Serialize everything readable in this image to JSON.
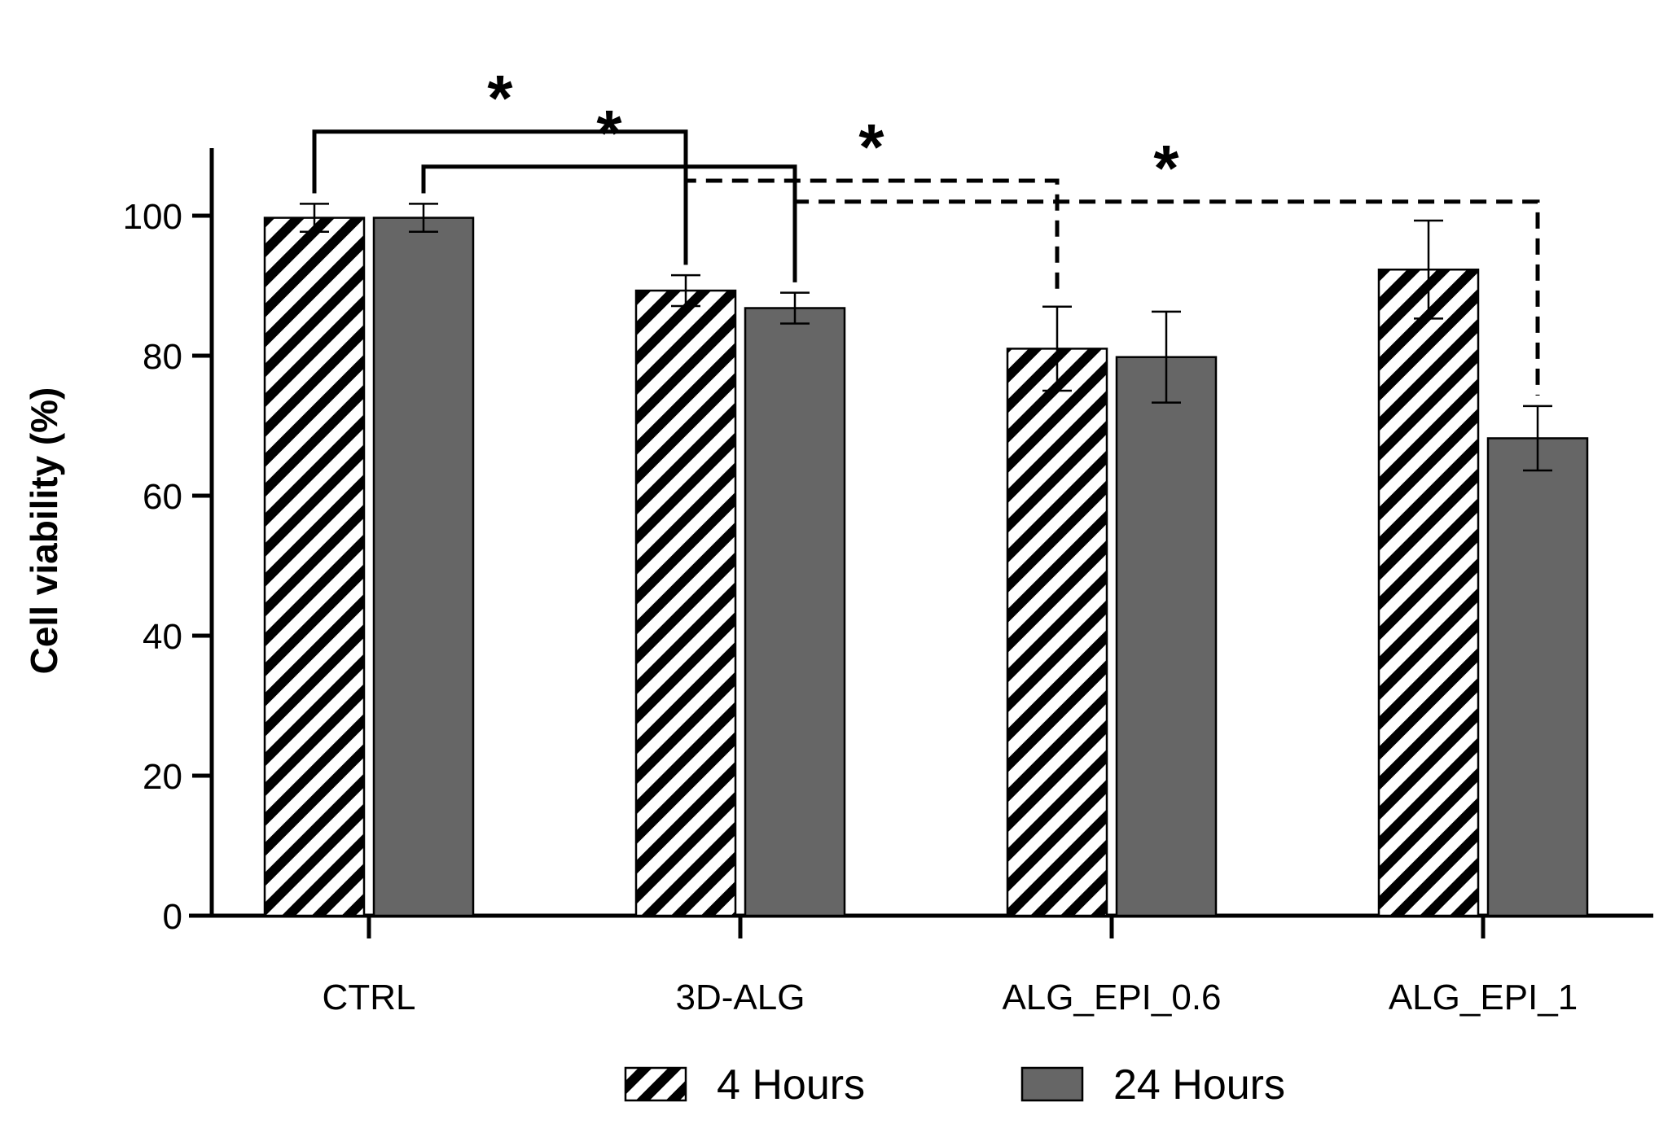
{
  "chart_data": {
    "type": "bar",
    "title": "",
    "xlabel": "",
    "ylabel": "Cell viability (%)",
    "ylim": [
      0,
      110
    ],
    "yticks": [
      0,
      20,
      40,
      60,
      80,
      100
    ],
    "categories": [
      "CTRL",
      "3D-ALG",
      "ALG_EPI_0.6",
      "ALG_EPI_1"
    ],
    "series": [
      {
        "name": "4 Hours",
        "values": [
          99.7,
          89.3,
          81.0,
          92.3
        ],
        "errors": [
          2.0,
          2.2,
          6.0,
          7.0
        ],
        "pattern": "hatched",
        "color": "#ffffff"
      },
      {
        "name": "24 Hours",
        "values": [
          99.7,
          86.8,
          79.8,
          68.2
        ],
        "errors": [
          2.0,
          2.2,
          6.5,
          4.6
        ],
        "pattern": "solid",
        "color": "#666666"
      }
    ],
    "significance": [
      {
        "label": "*",
        "from": {
          "category": 0,
          "series": 0
        },
        "to": {
          "category": 1,
          "series": 0
        },
        "style": "solid",
        "level": 112
      },
      {
        "label": "*",
        "from": {
          "category": 0,
          "series": 1
        },
        "to": {
          "category": 1,
          "series": 1
        },
        "style": "solid",
        "level": 107
      },
      {
        "label": "*",
        "from": {
          "category": 1,
          "series": 0
        },
        "to": {
          "category": 2,
          "series": 0
        },
        "style": "dashed",
        "level": 105
      },
      {
        "label": "*",
        "from": {
          "category": 1,
          "series": 1
        },
        "to": {
          "category": 3,
          "series": 1
        },
        "style": "dashed",
        "level": 102
      }
    ],
    "legend": {
      "position": "bottom",
      "entries": [
        "4 Hours",
        "24 Hours"
      ]
    }
  }
}
